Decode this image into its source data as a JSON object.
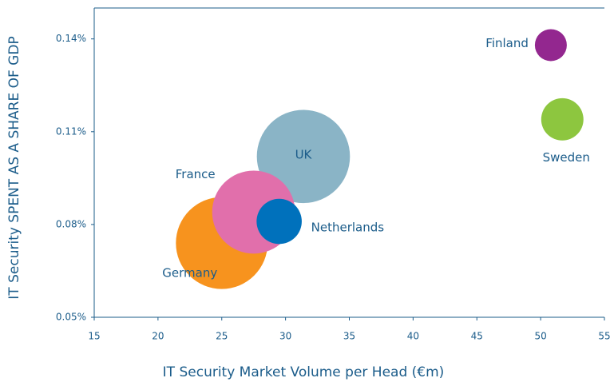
{
  "chart_data": {
    "type": "bubble",
    "xlabel": "IT Security Market Volume  per Head (€m)",
    "ylabel": "IT Security SPENT AS A SHARE OF GDP",
    "xlim": [
      15,
      55
    ],
    "xticks": [
      15,
      20,
      25,
      30,
      35,
      40,
      45,
      50,
      55
    ],
    "ylim": [
      0.05,
      0.15
    ],
    "yticks": [
      {
        "value": 0.05,
        "label": "0.05%"
      },
      {
        "value": 0.08,
        "label": "0.08%"
      },
      {
        "value": 0.11,
        "label": "0.11%"
      },
      {
        "value": 0.14,
        "label": "0.14%"
      }
    ],
    "series": [
      {
        "name": "UK",
        "color": "#8ab4c6",
        "x": 31.4,
        "y": 0.102,
        "size": 34
      },
      {
        "name": "Germany",
        "color": "#f7931e",
        "x": 25.0,
        "y": 0.074,
        "size": 33
      },
      {
        "name": "France",
        "color": "#e16fab",
        "x": 27.5,
        "y": 0.084,
        "size": 27
      },
      {
        "name": "Netherlands",
        "color": "#0071bc",
        "x": 29.5,
        "y": 0.081,
        "size": 8
      },
      {
        "name": "Finland",
        "color": "#93278f",
        "x": 50.8,
        "y": 0.138,
        "size": 4
      },
      {
        "name": "Sweden",
        "color": "#8dc63f",
        "x": 51.7,
        "y": 0.114,
        "size": 7
      }
    ]
  }
}
